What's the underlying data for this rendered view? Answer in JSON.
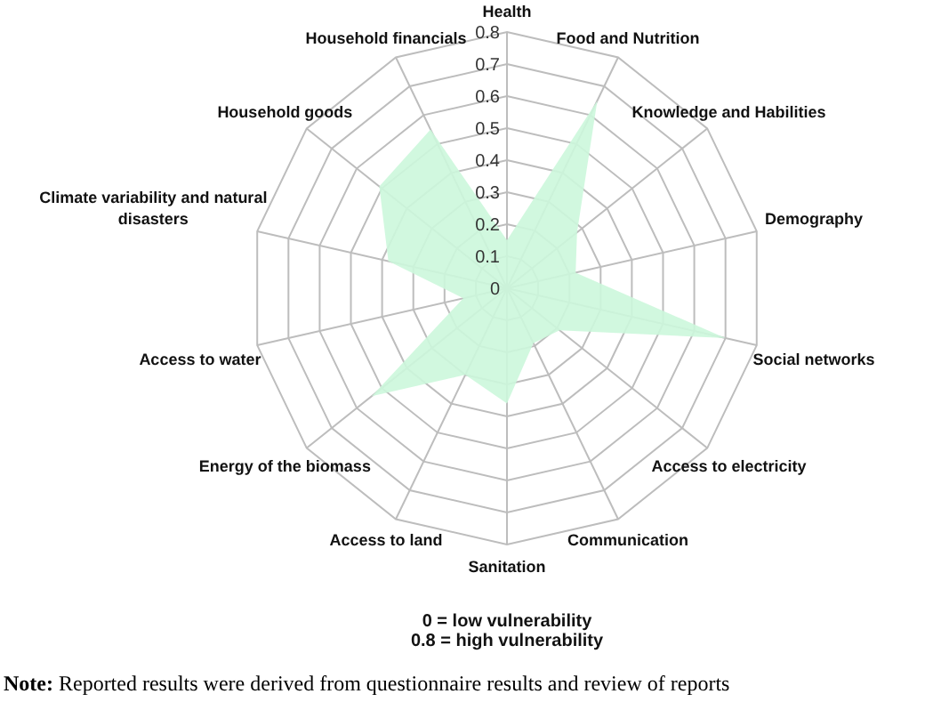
{
  "chart_data": {
    "type": "radar",
    "categories": [
      "Health",
      "Food and Nutrition",
      "Knowledge and Habilities",
      "Demography",
      "Social networks",
      "Access to electricity",
      "Communication",
      "Sanitation",
      "Access to land",
      "Energy of the biomass",
      "Access to water",
      "Climate variability and natural disasters",
      "Household goods",
      "Household financials"
    ],
    "series": [
      {
        "color": "#ccf7dc",
        "values": [
          0.15,
          0.65,
          0.28,
          0.22,
          0.7,
          0.21,
          0.19,
          0.36,
          0.3,
          0.54,
          0.14,
          0.38,
          0.51,
          0.55
        ]
      }
    ],
    "ylim": [
      0,
      0.8
    ],
    "yticks": [
      0,
      0.1,
      0.2,
      0.3,
      0.4,
      0.5,
      0.6,
      0.7,
      0.8
    ],
    "grid": true,
    "annotations": [
      "0 = low vulnerability",
      "0.8 = high vulnerability",
      "Note: Reported results were derived from questionnaire results and review of reports"
    ]
  }
}
